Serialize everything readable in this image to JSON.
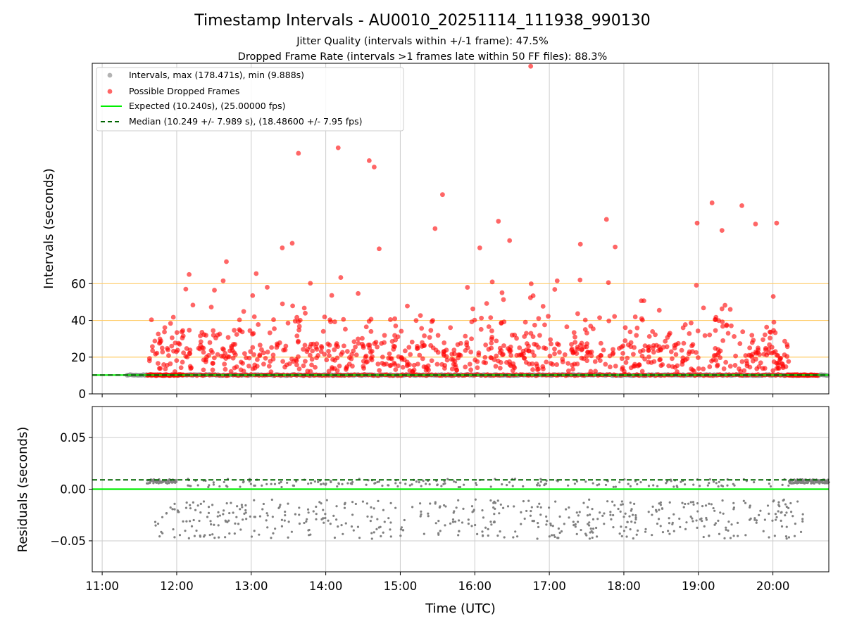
{
  "chart_data": {
    "type": "scatter",
    "title": "Timestamp Intervals - AU0010_20251114_111938_990130",
    "subtitle_1": "Jitter Quality (intervals within +/-1 frame): 47.5%",
    "subtitle_2": "Dropped Frame Rate (intervals >1 frames late within 50 FF files): 88.3%",
    "xlabel": "Time (UTC)",
    "x_ticks": [
      "11:00",
      "12:00",
      "13:00",
      "14:00",
      "15:00",
      "16:00",
      "17:00",
      "18:00",
      "19:00",
      "20:00"
    ],
    "xlim": [
      "10:52",
      "20:45"
    ],
    "top_panel": {
      "ylabel": "Intervals (seconds)",
      "y_ticks": [
        "0",
        "20",
        "40",
        "60"
      ],
      "ylim": [
        0,
        180
      ],
      "reference_lines": [
        20,
        40,
        60
      ],
      "legend_position": "upper left",
      "legend": [
        "Intervals, max (178.471s), min (9.888s)",
        "Possible Dropped Frames",
        "Expected (10.240s), (25.00000 fps)",
        "Median (10.249 +/- 7.989 s), (18.48600 +/- 7.95 fps)"
      ],
      "expected_interval": 10.24,
      "median_interval": 10.249,
      "interval_max": 178.471,
      "interval_min": 9.888,
      "dropped_highlights": [
        {
          "time": "16:45",
          "value": 178.4
        },
        {
          "time": "14:10",
          "value": 134.0
        },
        {
          "time": "13:38",
          "value": 131.0
        },
        {
          "time": "14:35",
          "value": 127.0
        },
        {
          "time": "14:39",
          "value": 123.5
        },
        {
          "time": "15:34",
          "value": 108.5
        },
        {
          "time": "19:11",
          "value": 104.0
        },
        {
          "time": "19:35",
          "value": 102.5
        },
        {
          "time": "15:28",
          "value": 90.0
        },
        {
          "time": "16:19",
          "value": 94.0
        },
        {
          "time": "17:46",
          "value": 95.0
        },
        {
          "time": "18:59",
          "value": 93.0
        },
        {
          "time": "19:19",
          "value": 89.0
        },
        {
          "time": "19:46",
          "value": 92.5
        },
        {
          "time": "20:03",
          "value": 93.0
        },
        {
          "time": "13:33",
          "value": 82.0
        },
        {
          "time": "14:43",
          "value": 79.0
        },
        {
          "time": "17:25",
          "value": 81.5
        },
        {
          "time": "17:53",
          "value": 80.0
        },
        {
          "time": "13:25",
          "value": 79.5
        },
        {
          "time": "16:04",
          "value": 79.5
        },
        {
          "time": "16:28",
          "value": 83.5
        },
        {
          "time": "12:40",
          "value": 72.0
        },
        {
          "time": "12:10",
          "value": 65.0
        },
        {
          "time": "13:04",
          "value": 65.5
        }
      ]
    },
    "bottom_panel": {
      "ylabel": "Residuals (seconds)",
      "y_ticks": [
        "0.05",
        "0.00",
        "−0.05"
      ],
      "ylim": [
        -0.08,
        0.08
      ],
      "expected_residual": 0.0,
      "median_residual": 0.009
    },
    "colors": {
      "intervals": "#808080",
      "dropped": "#ff0000",
      "expected": "#00ee00",
      "median": "#006400",
      "reference": "#ffcc66",
      "grid": "#cccccc"
    }
  }
}
